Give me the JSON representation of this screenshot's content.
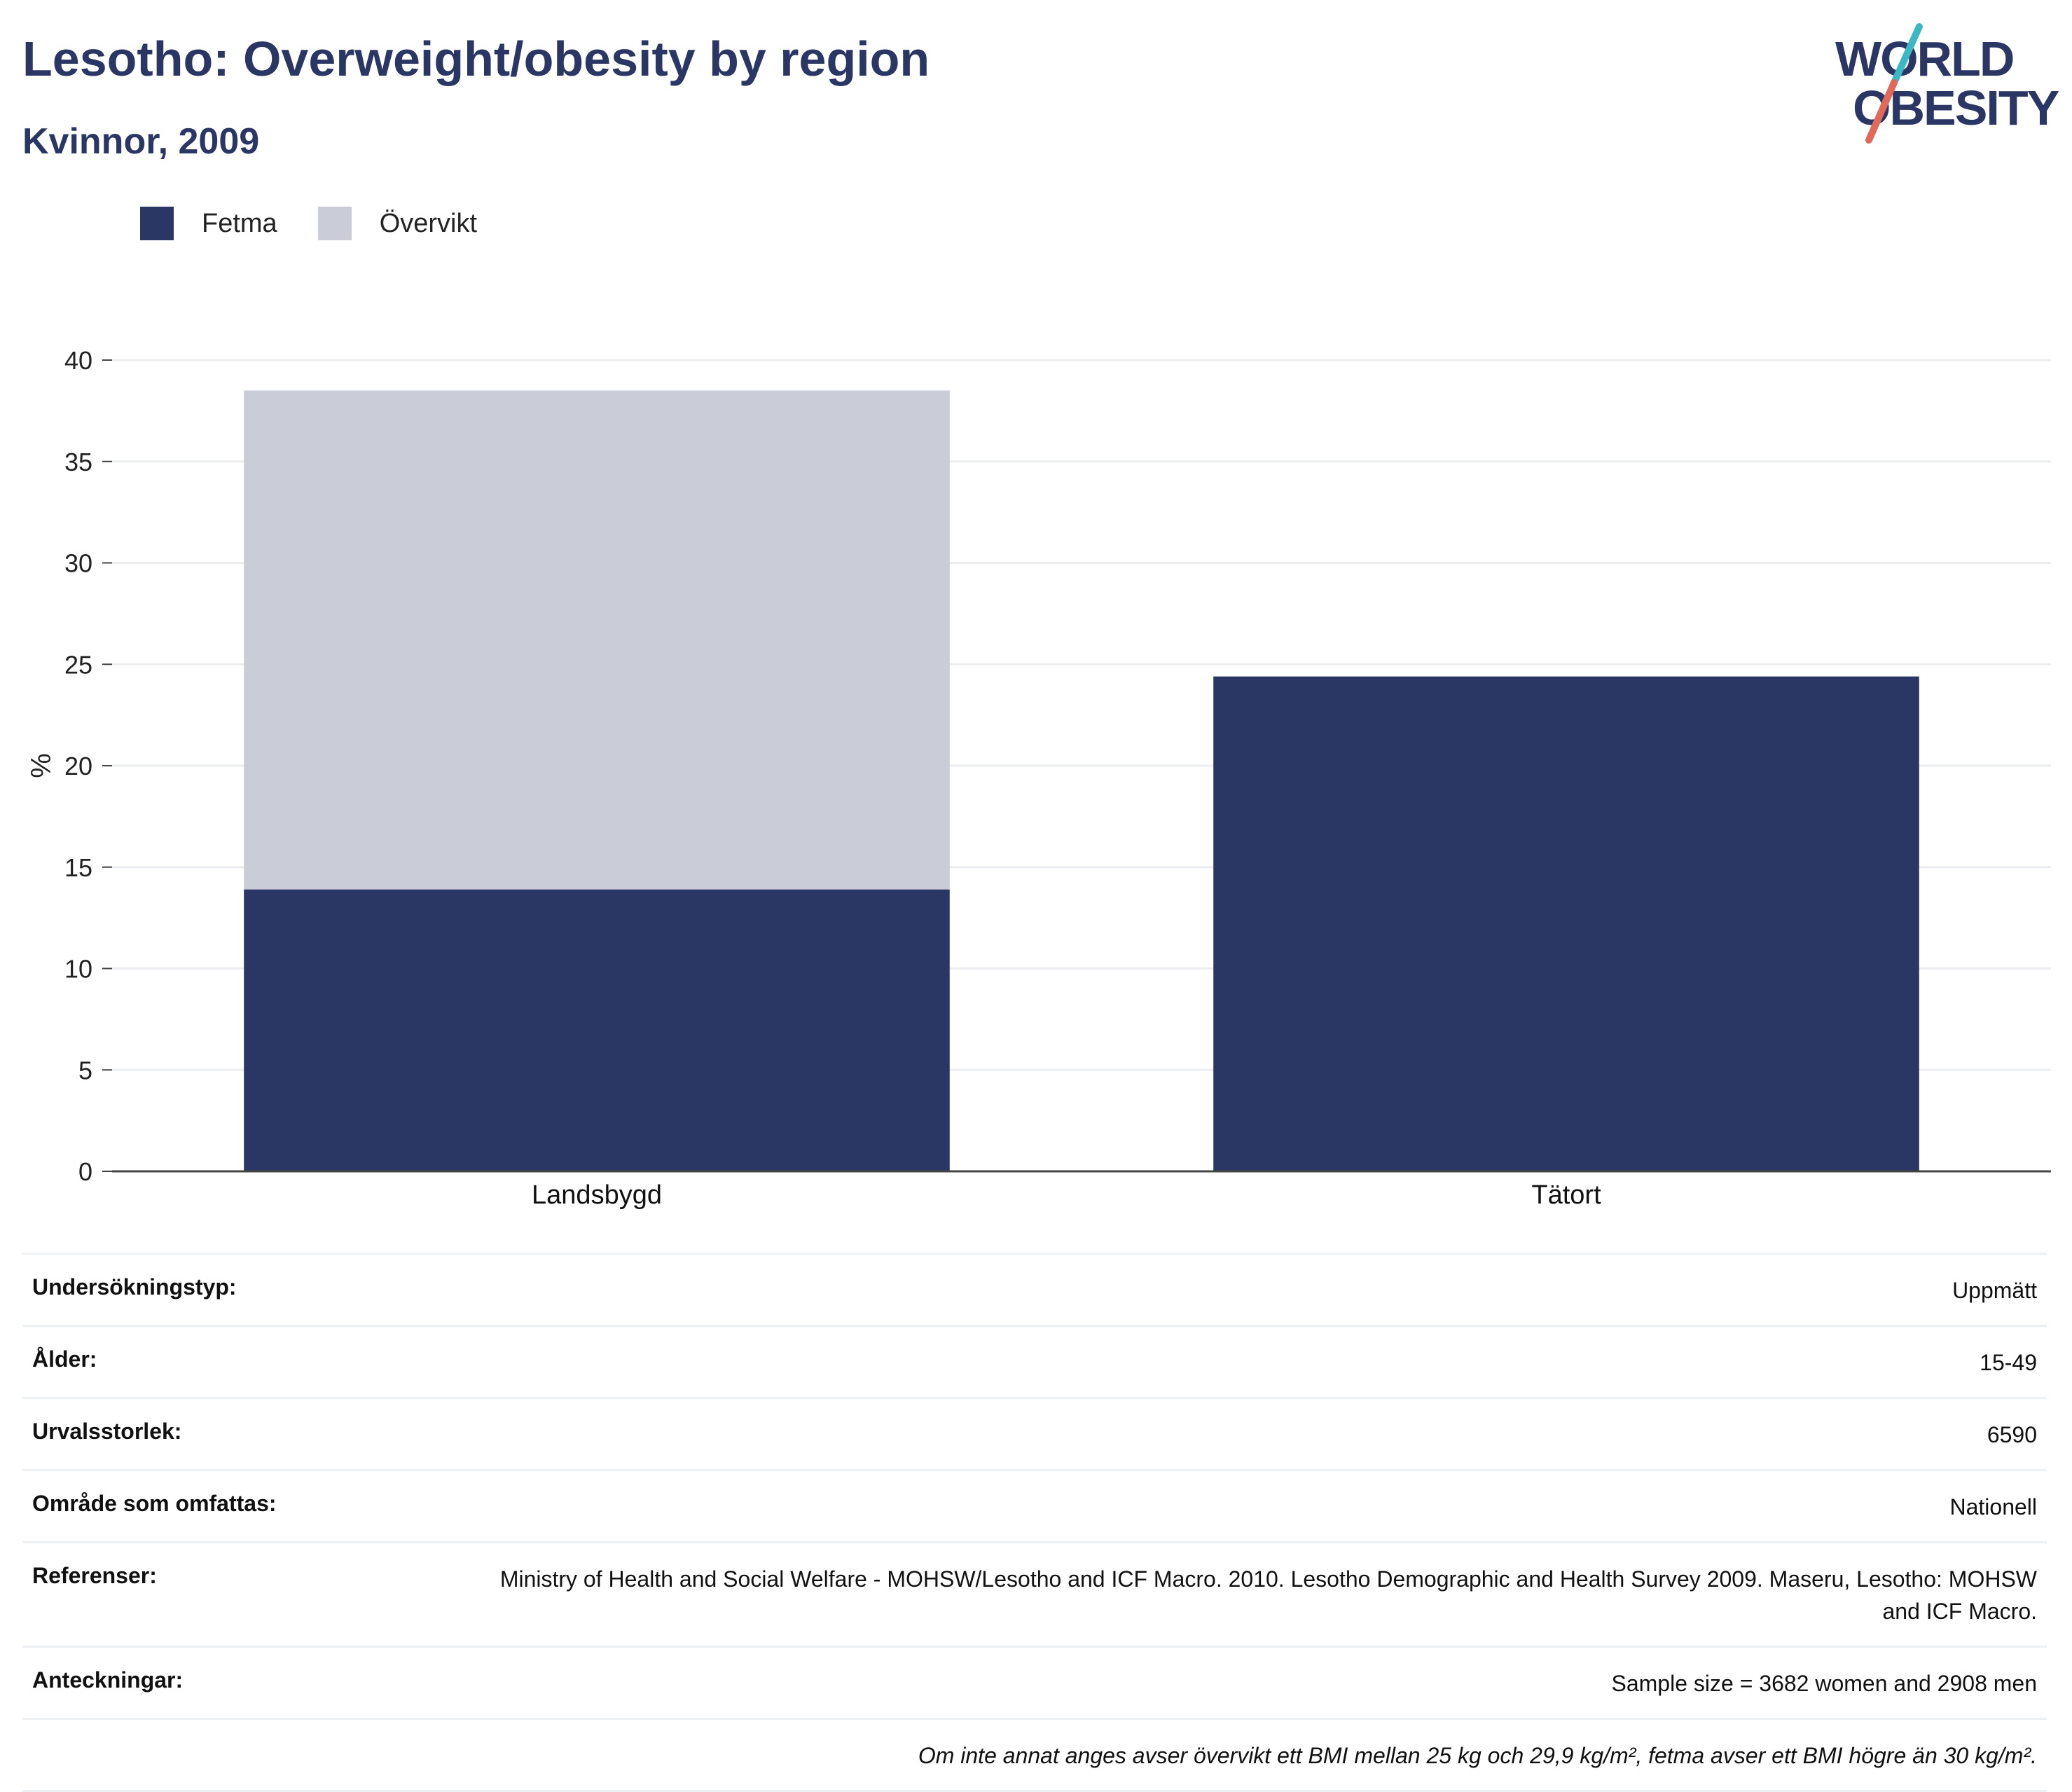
{
  "header": {
    "title": "Lesotho: Overweight/obesity by region",
    "subtitle": "Kvinnor, 2009"
  },
  "logo": {
    "line1": "WORLD",
    "line2": "OBESITY"
  },
  "colors": {
    "fetma": "#2a3663",
    "overvikt": "#cacdd8",
    "title": "#2a3663",
    "logo_teal": "#3bb8c3",
    "logo_red": "#e0695a"
  },
  "legend": [
    {
      "label": "Fetma",
      "color": "#2a3663"
    },
    {
      "label": "Övervikt",
      "color": "#cacdd8"
    }
  ],
  "chart_data": {
    "type": "bar",
    "stacked": true,
    "categories": [
      "Landsbygd",
      "Tätort"
    ],
    "series": [
      {
        "name": "Fetma",
        "values": [
          13.9,
          24.4
        ]
      },
      {
        "name": "Övervikt",
        "values": [
          24.6,
          0
        ]
      }
    ],
    "title": "Lesotho: Overweight/obesity by region",
    "subtitle": "Kvinnor, 2009",
    "xlabel": "",
    "ylabel": "%",
    "ylim": [
      0,
      40
    ],
    "yticks": [
      0,
      5,
      10,
      15,
      20,
      25,
      30,
      35,
      40
    ],
    "grid": true,
    "legend_position": "top-left"
  },
  "info": [
    {
      "label": "Undersökningstyp:",
      "value": "Uppmätt"
    },
    {
      "label": "Ålder:",
      "value": "15-49"
    },
    {
      "label": "Urvalsstorlek:",
      "value": "6590"
    },
    {
      "label": "Område som omfattas:",
      "value": "Nationell"
    },
    {
      "label": "Referenser:",
      "value": "Ministry of Health and Social Welfare - MOHSW/Lesotho and ICF Macro. 2010. Lesotho Demographic and Health Survey 2009. Maseru, Lesotho: MOHSW and ICF Macro."
    },
    {
      "label": "Anteckningar:",
      "value": "Sample size = 3682 women and 2908 men"
    }
  ],
  "note": "Om inte annat anges avser övervikt ett BMI mellan 25 kg och 29,9 kg/m², fetma avser ett BMI högre än 30 kg/m²."
}
